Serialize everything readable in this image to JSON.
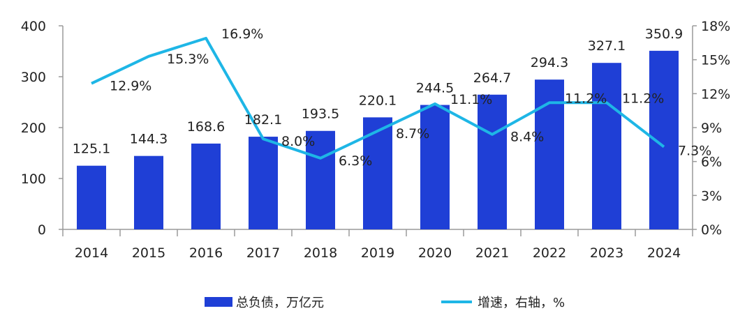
{
  "chart_data": {
    "type": "bar",
    "categories": [
      "2014",
      "2015",
      "2016",
      "2017",
      "2018",
      "2019",
      "2020",
      "2021",
      "2022",
      "2023",
      "2024"
    ],
    "series": [
      {
        "name": "总负债，万亿元",
        "type": "bar",
        "axis": "left",
        "values": [
          125.1,
          144.3,
          168.6,
          182.1,
          193.5,
          220.1,
          244.5,
          264.7,
          294.3,
          327.1,
          350.9
        ],
        "labels": [
          "125.1",
          "144.3",
          "168.6",
          "182.1",
          "193.5",
          "220.1",
          "244.5",
          "264.7",
          "294.3",
          "327.1",
          "350.9"
        ]
      },
      {
        "name": "增速，右轴，%",
        "type": "line",
        "axis": "right",
        "values": [
          12.9,
          15.3,
          16.9,
          8.0,
          6.3,
          8.7,
          11.1,
          8.4,
          11.2,
          11.2,
          7.3
        ],
        "labels": [
          "12.9%",
          "15.3%",
          "16.9%",
          "8.0%",
          "6.3%",
          "8.7%",
          "11.1%",
          "8.4%",
          "11.2%",
          "11.2%",
          "7.3%"
        ]
      }
    ],
    "y_left": {
      "ylim": [
        0,
        400
      ],
      "ticks": [
        "0",
        "100",
        "200",
        "300",
        "400"
      ]
    },
    "y_right": {
      "ylim": [
        0,
        18
      ],
      "ticks": [
        "0%",
        "3%",
        "6%",
        "9%",
        "12%",
        "15%",
        "18%"
      ]
    },
    "grid": false,
    "legend_position": "bottom",
    "colors": {
      "bar": "#1f3fd6",
      "line": "#1eb6e6"
    }
  }
}
